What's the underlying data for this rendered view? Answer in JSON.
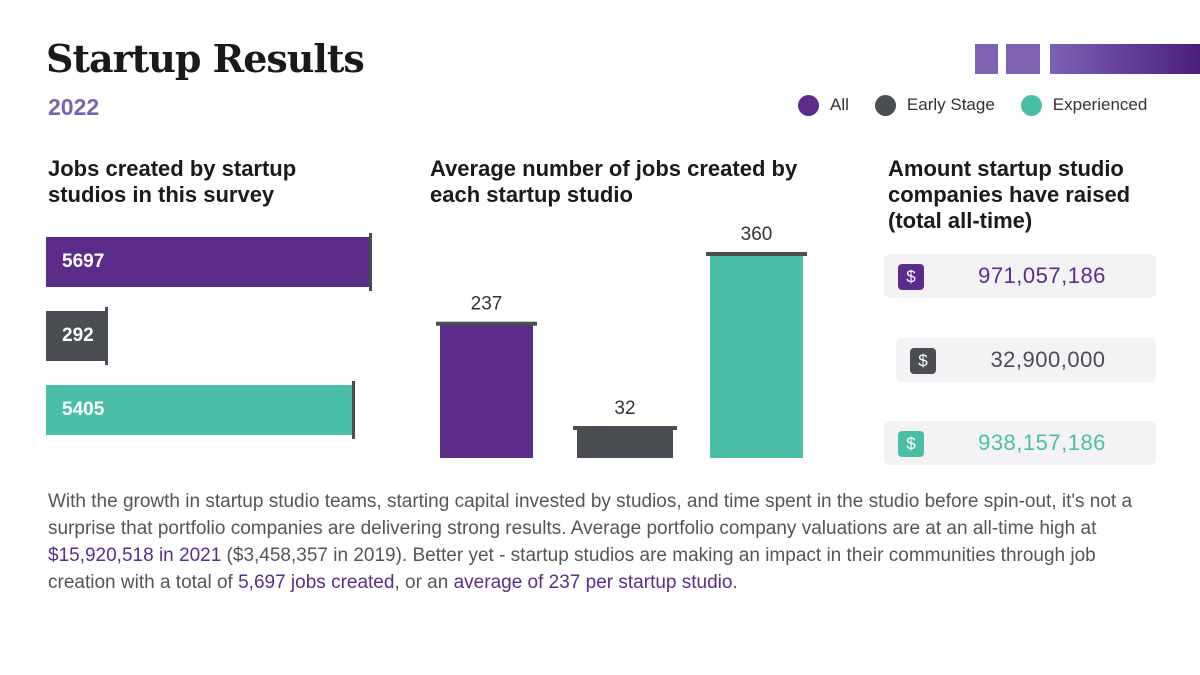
{
  "header": {
    "title": "Startup Results",
    "year": "2022"
  },
  "colors": {
    "all": "#5b2c8a",
    "early": "#4a4d52",
    "experienced": "#4bbfa5",
    "accent_light": "#7c62b3"
  },
  "legend": [
    {
      "label": "All",
      "color": "#5b2c8a"
    },
    {
      "label": "Early Stage",
      "color": "#4a4d52"
    },
    {
      "label": "Experienced",
      "color": "#4bbfa5"
    }
  ],
  "chart_data": [
    {
      "type": "bar",
      "orientation": "horizontal",
      "title": "Jobs created by startup studios in this survey",
      "categories": [
        "All",
        "Early Stage",
        "Experienced"
      ],
      "values": [
        5697,
        292,
        5405
      ],
      "labels": [
        "5697",
        "292",
        "5405"
      ],
      "xlim": [
        0,
        5697
      ]
    },
    {
      "type": "bar",
      "orientation": "vertical",
      "title": "Average number of jobs created by each startup studio",
      "categories": [
        "All",
        "Early Stage",
        "Experienced"
      ],
      "values": [
        237,
        32,
        360
      ],
      "labels": [
        "237",
        "32",
        "360"
      ],
      "ylim": [
        0,
        360
      ]
    },
    {
      "type": "table",
      "title": "Amount startup studio companies have raised (total all-time)",
      "categories": [
        "All",
        "Early Stage",
        "Experienced"
      ],
      "values": [
        971057186,
        32900000,
        938157186
      ],
      "labels": [
        "971,057,186",
        "32,900,000",
        "938,157,186"
      ],
      "icon_symbol": "$"
    }
  ],
  "paragraph": {
    "p1": "With the growth in startup studio teams, starting capital invested by studios, and time spent in the studio before spin-out, it's not a surprise that portfolio companies are delivering strong results. Average portfolio company valuations are at an all-time high at ",
    "h1": "$15,920,518 in 2021",
    "p2": " ($3,458,357 in 2019). Better yet - startup studios are making an impact in their communities through job creation with a total of ",
    "h2": "5,697 jobs created",
    "p3": ", or an ",
    "h3": "average of 237 per startup studio",
    "p4": "."
  }
}
